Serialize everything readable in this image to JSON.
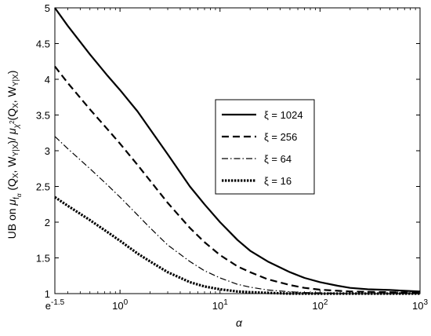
{
  "chart_data": {
    "type": "line",
    "xlabel": "α",
    "ylabel": "UB on μ_{f_α}(Q_X, W_{Y|X}) / μ_{χ²}(Q_X, W_{Y|X})",
    "xscale": "log",
    "xlim": [
      0.2231,
      1000
    ],
    "ylim": [
      1,
      5
    ],
    "grid": false,
    "legend_position": "center-right",
    "x_ticks": [
      {
        "value": 0.2231,
        "base": "e",
        "exp": "-1.5"
      },
      {
        "value": 1,
        "base": "10",
        "exp": "0"
      },
      {
        "value": 10,
        "base": "10",
        "exp": "1"
      },
      {
        "value": 100,
        "base": "10",
        "exp": "2"
      },
      {
        "value": 1000,
        "base": "10",
        "exp": "3"
      }
    ],
    "y_ticks": [
      {
        "value": 1,
        "label": "1"
      },
      {
        "value": 1.5,
        "label": "1.5"
      },
      {
        "value": 2,
        "label": "2"
      },
      {
        "value": 2.5,
        "label": "2.5"
      },
      {
        "value": 3,
        "label": "3"
      },
      {
        "value": 3.5,
        "label": "3.5"
      },
      {
        "value": 4,
        "label": "4"
      },
      {
        "value": 4.5,
        "label": "4.5"
      },
      {
        "value": 5,
        "label": "5"
      }
    ],
    "x": [
      0.2231,
      0.3,
      0.5,
      0.75,
      1,
      1.5,
      2,
      3,
      5,
      7,
      10,
      15,
      20,
      30,
      50,
      70,
      100,
      150,
      200,
      300,
      500,
      700,
      1000
    ],
    "series": [
      {
        "name": "ξ = 1024",
        "style": "solid",
        "width": 2.2,
        "values": [
          5.0,
          4.75,
          4.35,
          4.05,
          3.85,
          3.55,
          3.3,
          2.95,
          2.5,
          2.25,
          2.0,
          1.75,
          1.6,
          1.45,
          1.3,
          1.22,
          1.16,
          1.11,
          1.08,
          1.06,
          1.05,
          1.04,
          1.03
        ]
      },
      {
        "name": "ξ = 256",
        "style": "dashed",
        "width": 2.2,
        "values": [
          4.18,
          3.95,
          3.58,
          3.3,
          3.1,
          2.8,
          2.58,
          2.27,
          1.92,
          1.72,
          1.54,
          1.38,
          1.3,
          1.2,
          1.12,
          1.08,
          1.055,
          1.04,
          1.03,
          1.025,
          1.02,
          1.015,
          1.01
        ]
      },
      {
        "name": "ξ = 64",
        "style": "dashdot",
        "width": 1.2,
        "values": [
          3.2,
          3.03,
          2.75,
          2.52,
          2.35,
          2.1,
          1.92,
          1.68,
          1.45,
          1.32,
          1.22,
          1.13,
          1.09,
          1.05,
          1.025,
          1.015,
          1.01,
          1.005,
          1.0,
          1.0,
          1.0,
          1.0,
          1.0
        ]
      },
      {
        "name": "ξ = 16",
        "style": "dotted",
        "width": 3.2,
        "values": [
          2.35,
          2.23,
          2.03,
          1.86,
          1.74,
          1.56,
          1.45,
          1.3,
          1.16,
          1.1,
          1.06,
          1.03,
          1.02,
          1.01,
          1.0,
          1.0,
          1.0,
          1.0,
          1.0,
          1.0,
          1.0,
          1.0,
          1.0
        ]
      }
    ],
    "colors": {
      "line": "#000000",
      "background": "#ffffff",
      "frame": "#000000"
    }
  }
}
